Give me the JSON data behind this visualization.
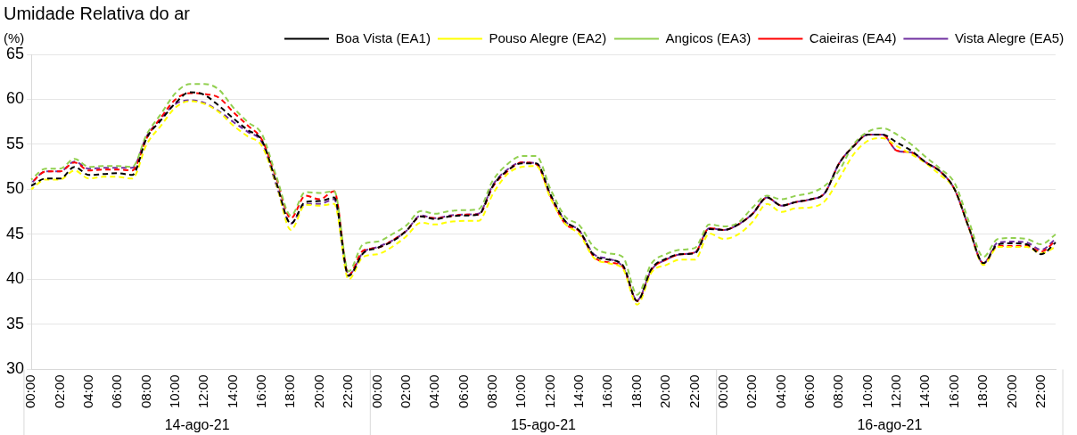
{
  "chart_data": {
    "type": "line",
    "title": "Umidade Relativa do ar",
    "ylabel": "(%)",
    "categories": [
      "00:00",
      null,
      "02:00",
      null,
      "04:00",
      null,
      "06:00",
      null,
      "08:00",
      null,
      "10:00",
      null,
      "12:00",
      null,
      "14:00",
      null,
      "16:00",
      null,
      "18:00",
      null,
      "20:00",
      null,
      "22:00",
      null,
      "00:00",
      null,
      "02:00",
      null,
      "04:00",
      null,
      "06:00",
      null,
      "08:00",
      null,
      "10:00",
      null,
      "12:00",
      null,
      "14:00",
      null,
      "16:00",
      null,
      "18:00",
      null,
      "20:00",
      null,
      "22:00",
      null,
      "00:00",
      null,
      "02:00",
      null,
      "04:00",
      null,
      "06:00",
      null,
      "08:00",
      null,
      "10:00",
      null,
      "12:00",
      null,
      "14:00",
      null,
      "16:00",
      null,
      "18:00",
      null,
      "20:00",
      null,
      "22:00",
      null
    ],
    "series": [
      {
        "name": "Boa Vista (EA1)",
        "color": "#000000",
        "values": [
          50.4,
          51.2,
          51.2,
          52.5,
          51.6,
          51.7,
          51.8,
          51.6,
          55.7,
          57.7,
          59.6,
          60.8,
          60.5,
          59.3,
          57.9,
          56.6,
          55.4,
          50.7,
          46.2,
          48.6,
          48.7,
          49.1,
          40.4,
          42.9,
          43.5,
          44.2,
          45.4,
          47.0,
          46.7,
          47.0,
          47.1,
          47.2,
          50.4,
          52.1,
          52.9,
          52.9,
          49.4,
          46.5,
          45.4,
          42.7,
          42.2,
          41.6,
          37.6,
          41.2,
          42.3,
          42.8,
          42.9,
          45.6,
          45.5,
          46.1,
          47.3,
          49.1,
          48.2,
          48.6,
          48.9,
          49.6,
          52.9,
          54.8,
          56.1,
          56.1,
          55.2,
          54.3,
          53.0,
          52.0,
          50.0,
          45.7,
          41.8,
          43.9,
          44.0,
          43.9,
          42.8,
          44.1
        ]
      },
      {
        "name": "Pouso Alegre (EA2)",
        "color": "#ffff00",
        "values": [
          50.0,
          51.1,
          51.1,
          52.1,
          51.2,
          51.4,
          51.4,
          51.2,
          55.0,
          57.1,
          59.1,
          59.8,
          59.5,
          58.6,
          57.1,
          55.9,
          54.8,
          50.5,
          45.5,
          48.3,
          48.2,
          48.4,
          40.0,
          42.5,
          42.8,
          43.6,
          44.8,
          46.3,
          46.1,
          46.4,
          46.5,
          46.5,
          49.5,
          51.7,
          52.5,
          52.6,
          49.0,
          46.2,
          45.0,
          42.4,
          41.8,
          41.2,
          37.2,
          40.8,
          41.6,
          42.2,
          42.2,
          45.1,
          44.5,
          45.0,
          46.4,
          48.4,
          47.5,
          47.9,
          48.0,
          48.7,
          51.2,
          53.9,
          55.4,
          55.7,
          54.8,
          53.9,
          52.9,
          51.6,
          50.0,
          45.7,
          41.6,
          43.6,
          43.6,
          43.6,
          42.9,
          43.6
        ]
      },
      {
        "name": "Angicos (EA3)",
        "color": "#92d050",
        "values": [
          51.1,
          52.3,
          52.3,
          53.4,
          52.5,
          52.6,
          52.6,
          52.5,
          56.1,
          58.4,
          60.7,
          61.7,
          61.7,
          61.1,
          59.1,
          57.5,
          56.1,
          51.4,
          47.1,
          49.7,
          49.6,
          49.8,
          40.9,
          43.9,
          44.2,
          45.0,
          46.0,
          47.6,
          47.3,
          47.6,
          47.7,
          47.8,
          51.0,
          52.8,
          53.7,
          53.7,
          50.0,
          47.0,
          46.0,
          43.6,
          42.9,
          42.5,
          38.3,
          41.8,
          42.8,
          43.3,
          43.5,
          46.1,
          45.9,
          46.3,
          48.0,
          49.3,
          48.9,
          49.3,
          49.6,
          50.4,
          52.1,
          55.0,
          56.4,
          56.8,
          56.1,
          55.0,
          53.6,
          52.3,
          50.7,
          46.4,
          42.5,
          44.5,
          44.6,
          44.5,
          43.9,
          45.0
        ]
      },
      {
        "name": "Caieiras (EA4)",
        "color": "#ff0000",
        "values": [
          50.7,
          52.0,
          52.0,
          53.0,
          52.1,
          52.2,
          52.2,
          52.1,
          55.7,
          58.0,
          60.0,
          60.7,
          60.6,
          60.2,
          58.6,
          57.1,
          55.5,
          51.2,
          46.8,
          49.3,
          48.9,
          49.8,
          40.5,
          43.2,
          43.5,
          44.3,
          45.4,
          47.0,
          46.8,
          47.0,
          47.2,
          47.2,
          50.3,
          52.0,
          53.0,
          52.8,
          49.2,
          46.2,
          45.3,
          42.5,
          41.9,
          41.4,
          37.6,
          41.1,
          42.2,
          42.8,
          43.0,
          45.7,
          45.5,
          46.1,
          47.3,
          49.1,
          48.2,
          48.6,
          48.9,
          49.6,
          52.9,
          54.8,
          56.1,
          56.1,
          54.3,
          54.1,
          53.0,
          52.0,
          50.0,
          45.7,
          41.8,
          43.7,
          43.7,
          43.7,
          43.1,
          44.3
        ]
      },
      {
        "name": "Vista Alegre (EA5)",
        "color": "#7030a0",
        "values": [
          50.7,
          52.0,
          52.0,
          53.1,
          52.3,
          52.4,
          52.4,
          52.4,
          55.9,
          57.9,
          59.5,
          59.9,
          59.6,
          58.7,
          57.5,
          56.4,
          55.2,
          50.4,
          46.2,
          48.4,
          48.4,
          48.9,
          40.5,
          43.0,
          43.6,
          44.3,
          45.4,
          47.1,
          46.8,
          47.1,
          47.2,
          47.3,
          50.5,
          52.2,
          53.0,
          52.9,
          49.3,
          46.5,
          45.4,
          42.8,
          42.3,
          41.4,
          37.7,
          41.1,
          42.2,
          42.8,
          43.0,
          45.7,
          45.5,
          46.1,
          47.3,
          49.1,
          48.2,
          48.6,
          48.9,
          49.6,
          52.9,
          54.8,
          56.1,
          56.1,
          54.3,
          54.1,
          53.0,
          52.0,
          50.0,
          45.7,
          41.8,
          44.1,
          44.2,
          44.1,
          43.3,
          44.5
        ]
      }
    ],
    "ylim": [
      30,
      65
    ],
    "yticks": [
      30,
      35,
      40,
      45,
      50,
      55,
      60,
      65
    ],
    "grid": "y",
    "legend": "top right",
    "marker": "none",
    "line_style": "dashed",
    "annotations": [
      "14-ago-21",
      "15-ago-21",
      "16-ago-21"
    ]
  }
}
